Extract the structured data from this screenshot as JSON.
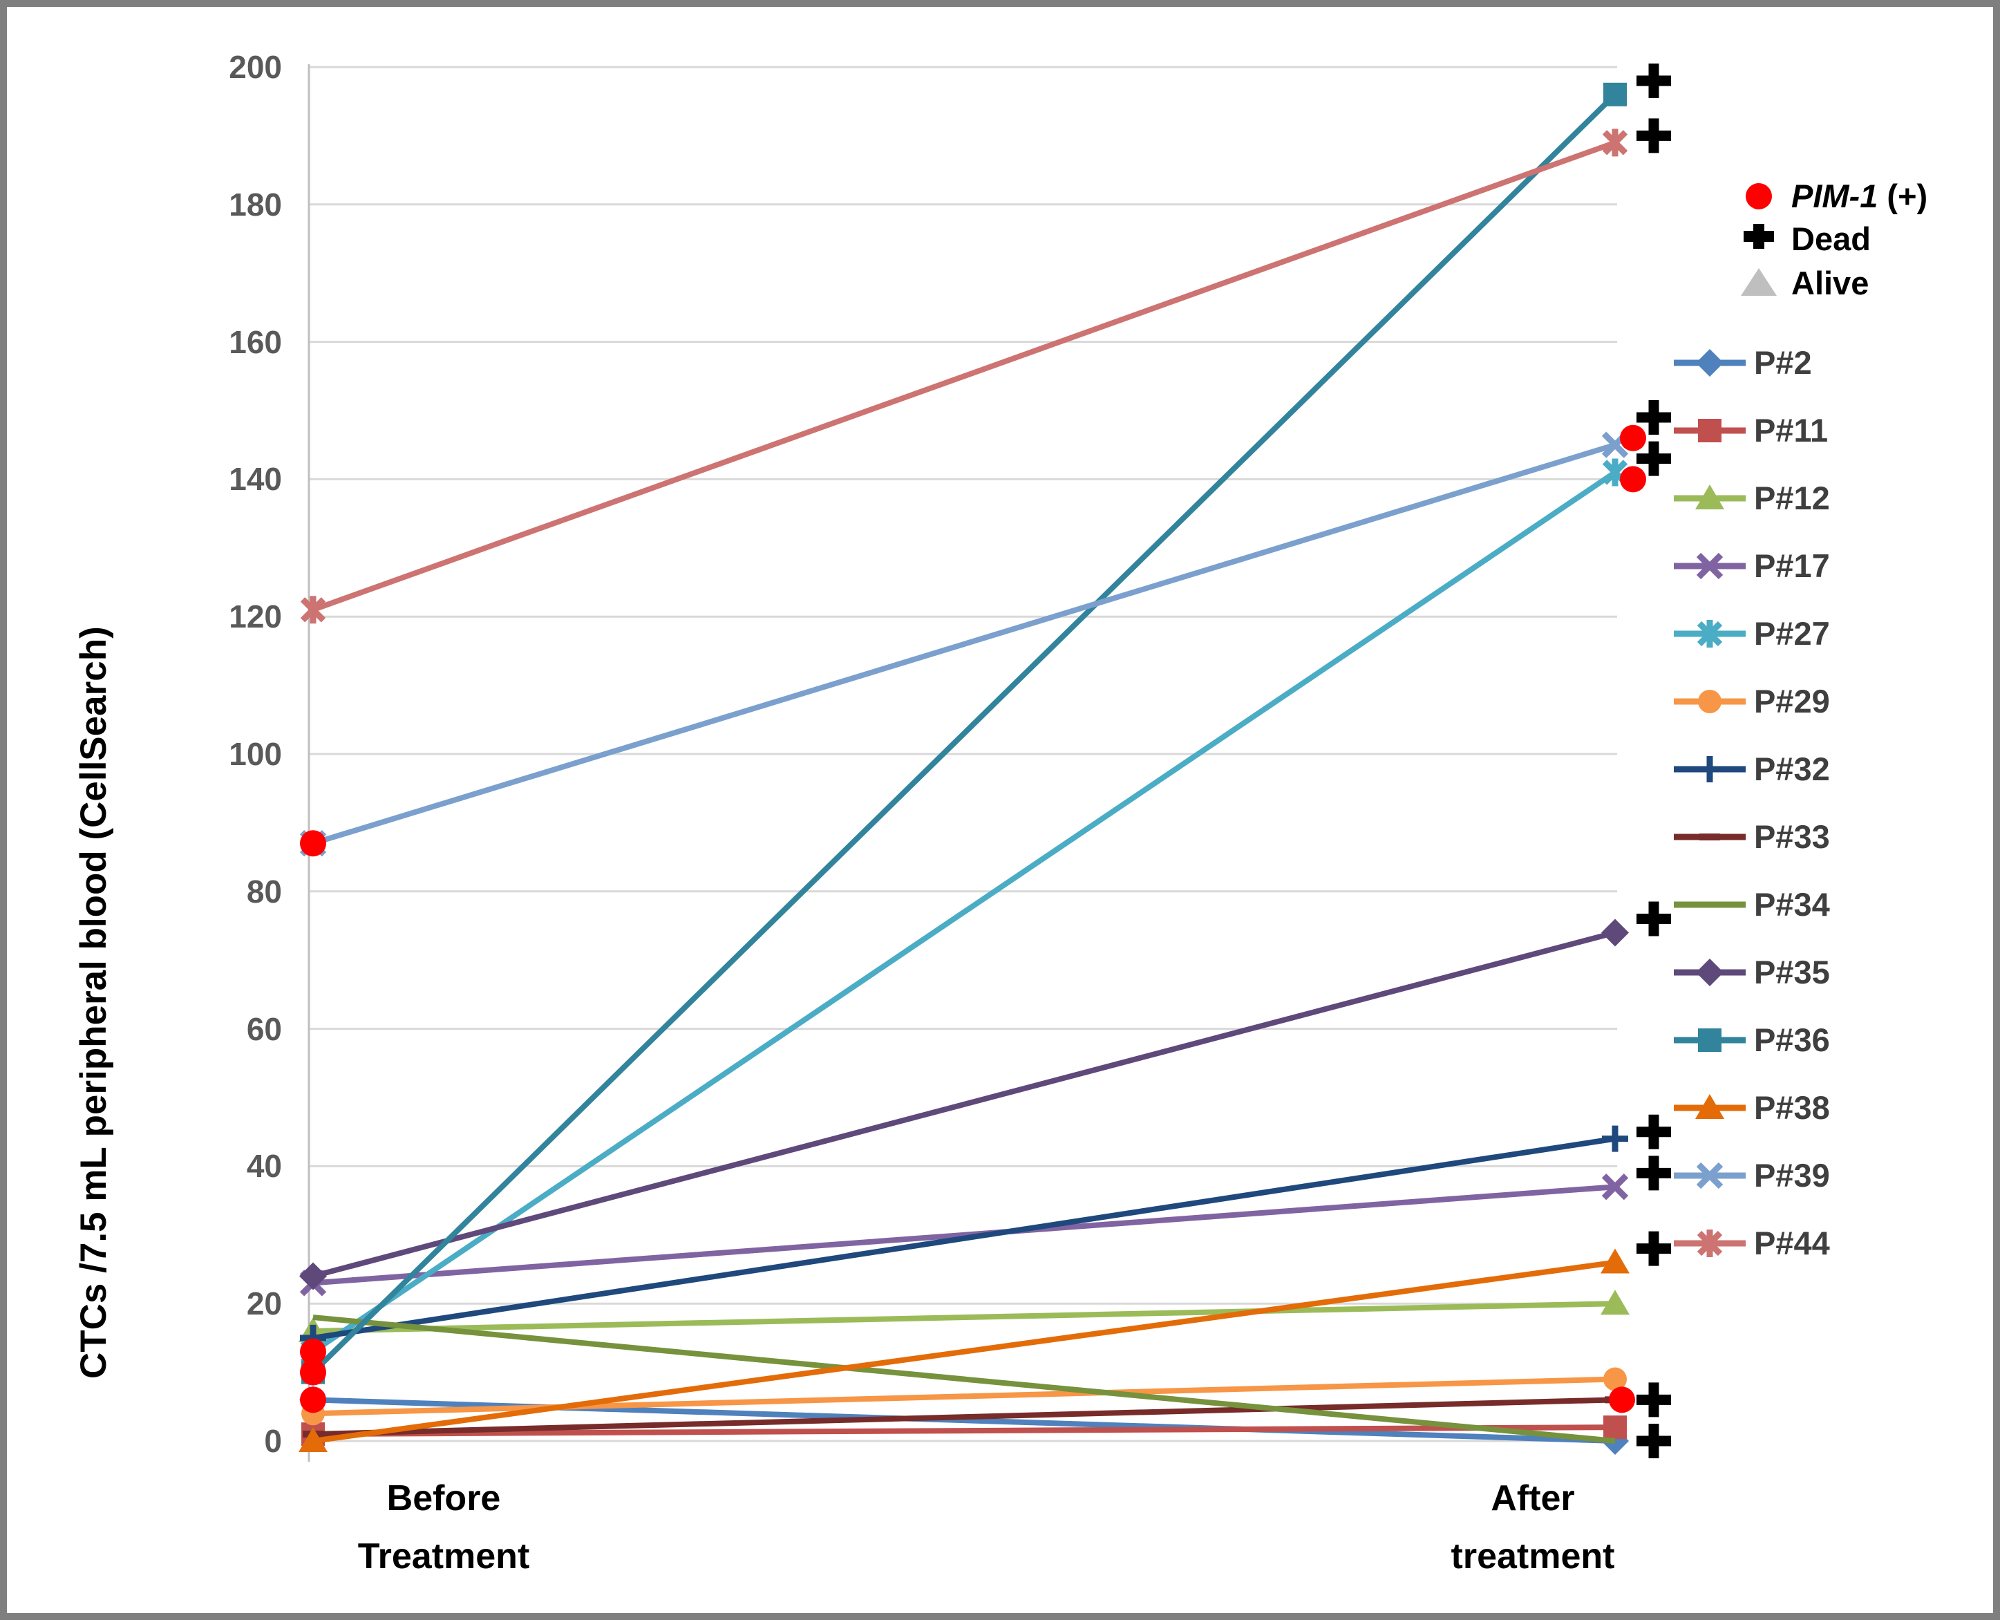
{
  "figure": {
    "ylabel": "CTCs /7.5 mL peripheral blood (CellSearch)",
    "x_categories": [
      {
        "line1": "Before",
        "line2": "Treatment"
      },
      {
        "line1": "After",
        "line2": "treatment"
      }
    ]
  },
  "status_legend": {
    "pim1_label_italic": "PIM-1",
    "pim1_label_suffix": " (+)",
    "pim1_color": "#FF0000",
    "dead_label": "Dead",
    "dead_color": "#000000",
    "alive_label": "Alive",
    "alive_color": "#BFBFBF"
  },
  "chart_data": {
    "type": "line",
    "categories": [
      "Before Treatment",
      "After treatment"
    ],
    "ylabel": "CTCs /7.5 mL peripheral blood (CellSearch)",
    "ylim": [
      0,
      200
    ],
    "ytick_step": 20,
    "grid": true,
    "legend_position": "right",
    "series": [
      {
        "name": "P#2",
        "color": "#4F81BD",
        "marker": "diamond",
        "values": [
          6,
          0
        ],
        "dead": true,
        "pim1": [
          "before"
        ]
      },
      {
        "name": "P#11",
        "color": "#C0504D",
        "marker": "square",
        "values": [
          1,
          2
        ],
        "dead": false,
        "pim1": []
      },
      {
        "name": "P#12",
        "color": "#9BBB59",
        "marker": "triangle",
        "values": [
          16,
          20
        ],
        "dead": false,
        "pim1": []
      },
      {
        "name": "P#17",
        "color": "#8064A2",
        "marker": "x",
        "values": [
          23,
          37
        ],
        "dead": true,
        "pim1": []
      },
      {
        "name": "P#27",
        "color": "#4BACC6",
        "marker": "asterisk",
        "values": [
          13,
          141
        ],
        "dead": true,
        "pim1": [
          "before",
          "after"
        ]
      },
      {
        "name": "P#29",
        "color": "#F79646",
        "marker": "circle",
        "values": [
          4,
          9
        ],
        "dead": false,
        "pim1": []
      },
      {
        "name": "P#32",
        "color": "#1F497D",
        "marker": "plus",
        "values": [
          15,
          44
        ],
        "dead": true,
        "pim1": []
      },
      {
        "name": "P#33",
        "color": "#772C2A",
        "marker": "dash",
        "values": [
          1,
          6
        ],
        "dead": true,
        "pim1": [
          "after"
        ]
      },
      {
        "name": "P#34",
        "color": "#76923C",
        "marker": "none",
        "values": [
          18,
          0
        ],
        "dead": false,
        "pim1": []
      },
      {
        "name": "P#35",
        "color": "#5F497A",
        "marker": "diamond",
        "values": [
          24,
          74
        ],
        "dead": true,
        "pim1": []
      },
      {
        "name": "P#36",
        "color": "#31849B",
        "marker": "square",
        "values": [
          10,
          196
        ],
        "dead": true,
        "pim1": [
          "before"
        ]
      },
      {
        "name": "P#38",
        "color": "#E36C09",
        "marker": "triangle",
        "values": [
          0,
          26
        ],
        "dead": true,
        "pim1": []
      },
      {
        "name": "P#39",
        "color": "#7BA0CD",
        "marker": "x",
        "values": [
          87,
          145
        ],
        "dead": true,
        "pim1": [
          "before",
          "after"
        ]
      },
      {
        "name": "P#44",
        "color": "#CD7371",
        "marker": "asterisk",
        "values": [
          121,
          189
        ],
        "dead": true,
        "pim1": []
      }
    ],
    "pim1_marks": [
      {
        "category": "Before Treatment",
        "value": 87,
        "dx": 0
      },
      {
        "category": "Before Treatment",
        "value": 13,
        "dx": 0
      },
      {
        "category": "Before Treatment",
        "value": 10,
        "dx": 0
      },
      {
        "category": "Before Treatment",
        "value": 6,
        "dx": 0
      },
      {
        "category": "After treatment",
        "value": 146,
        "dx": 26
      },
      {
        "category": "After treatment",
        "value": 140,
        "dx": 26
      },
      {
        "category": "After treatment",
        "value": 6,
        "dx": 10
      }
    ],
    "dead_marks": [
      {
        "series": "P#36",
        "value": 198
      },
      {
        "series": "P#44",
        "value": 190
      },
      {
        "series": "P#39",
        "value": 149
      },
      {
        "series": "P#27",
        "value": 143
      },
      {
        "series": "P#35",
        "value": 76
      },
      {
        "series": "P#32",
        "value": 45
      },
      {
        "series": "P#17",
        "value": 39
      },
      {
        "series": "P#38",
        "value": 28
      },
      {
        "series": "P#33",
        "value": 6
      },
      {
        "series": "P#2",
        "value": 0
      }
    ]
  }
}
